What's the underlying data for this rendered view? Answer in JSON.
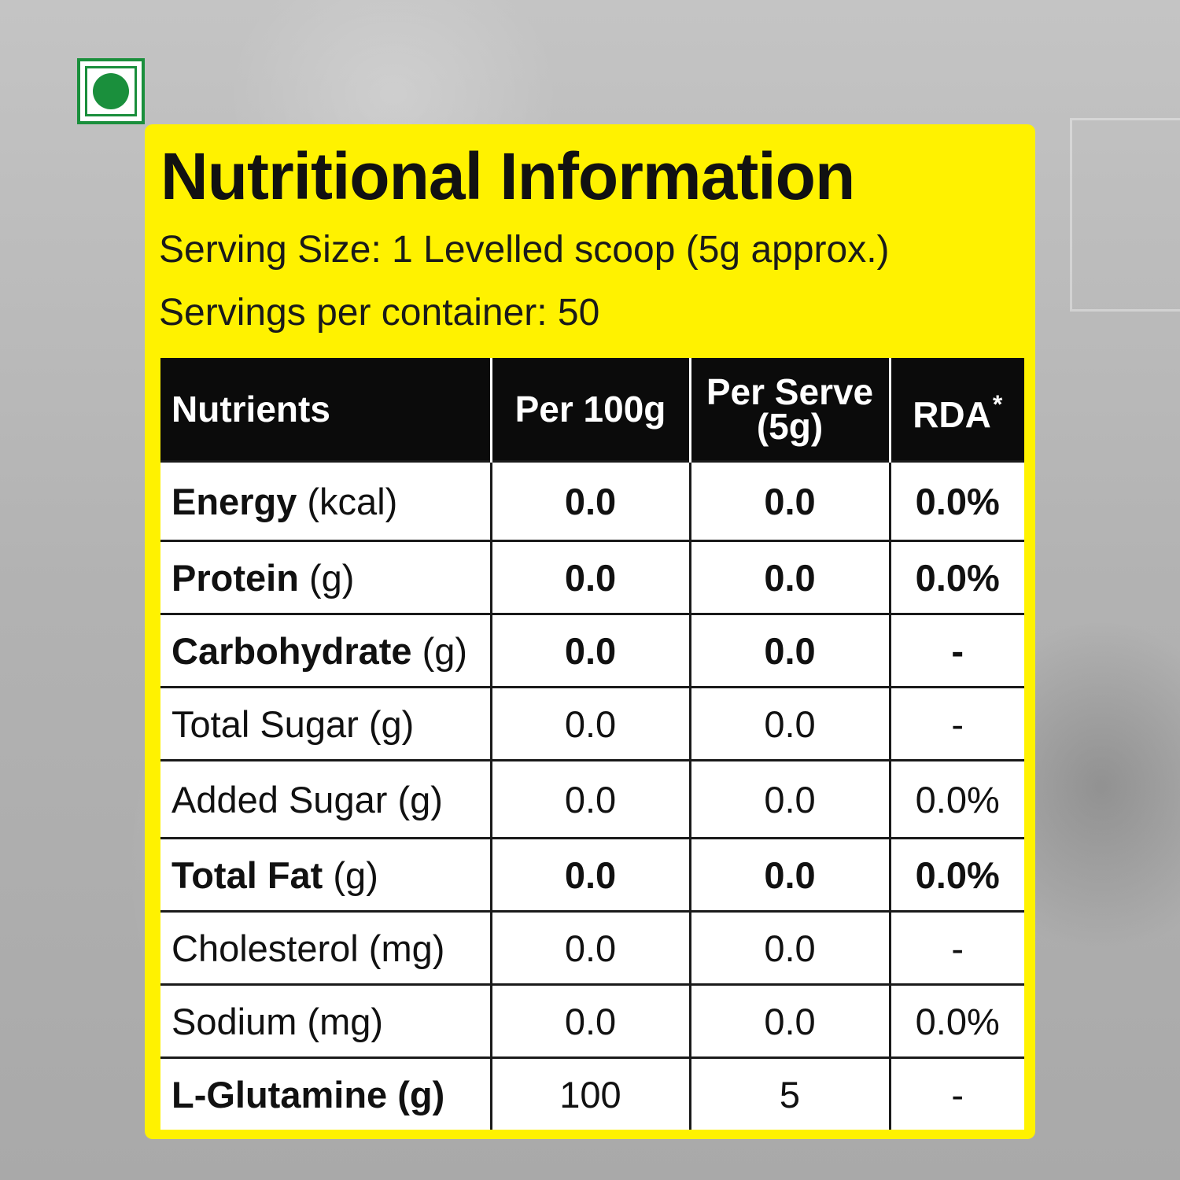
{
  "title": "Nutritional Information",
  "serving_size": "Serving Size: 1 Levelled scoop (5g approx.)",
  "servings_per_container": "Servings per container: 50",
  "colors": {
    "panel": "#fff200",
    "header": "#0b0b0b",
    "veg": "#1a8f3c"
  },
  "icons": {
    "veg_mark": "vegetarian-mark-icon"
  },
  "table": {
    "headers": {
      "nutrients": "Nutrients",
      "per100": "Per 100g",
      "per_serve_line1": "Per Serve",
      "per_serve_line2": "(5g)",
      "rda": "RDA",
      "rda_mark": "*"
    },
    "rows": [
      {
        "name": "Energy",
        "unit": " (kcal)",
        "per100": "0.0",
        "serve": "0.0",
        "rda": "0.0%"
      },
      {
        "name": "Protein",
        "unit": " (g)",
        "per100": "0.0",
        "serve": "0.0",
        "rda": "0.0%"
      },
      {
        "name": "Carbohydrate",
        "unit": " (g)",
        "per100": "0.0",
        "serve": "0.0",
        "rda": "-"
      },
      {
        "name": "Total Sugar",
        "unit": " (g)",
        "per100": "0.0",
        "serve": "0.0",
        "rda": "-"
      },
      {
        "name": "Added Sugar",
        "unit": " (g)",
        "per100": "0.0",
        "serve": "0.0",
        "rda": "0.0%"
      },
      {
        "name": "Total Fat",
        "unit": " (g)",
        "per100": "0.0",
        "serve": "0.0",
        "rda": "0.0%"
      },
      {
        "name": "Cholesterol",
        "unit": " (mg)",
        "per100": "0.0",
        "serve": "0.0",
        "rda": "-"
      },
      {
        "name": "Sodium",
        "unit": " (mg)",
        "per100": "0.0",
        "serve": "0.0",
        "rda": "0.0%"
      },
      {
        "name": "L-Glutamine",
        "unit": " (g)",
        "per100": "100",
        "serve": "5",
        "rda": "-"
      }
    ]
  }
}
